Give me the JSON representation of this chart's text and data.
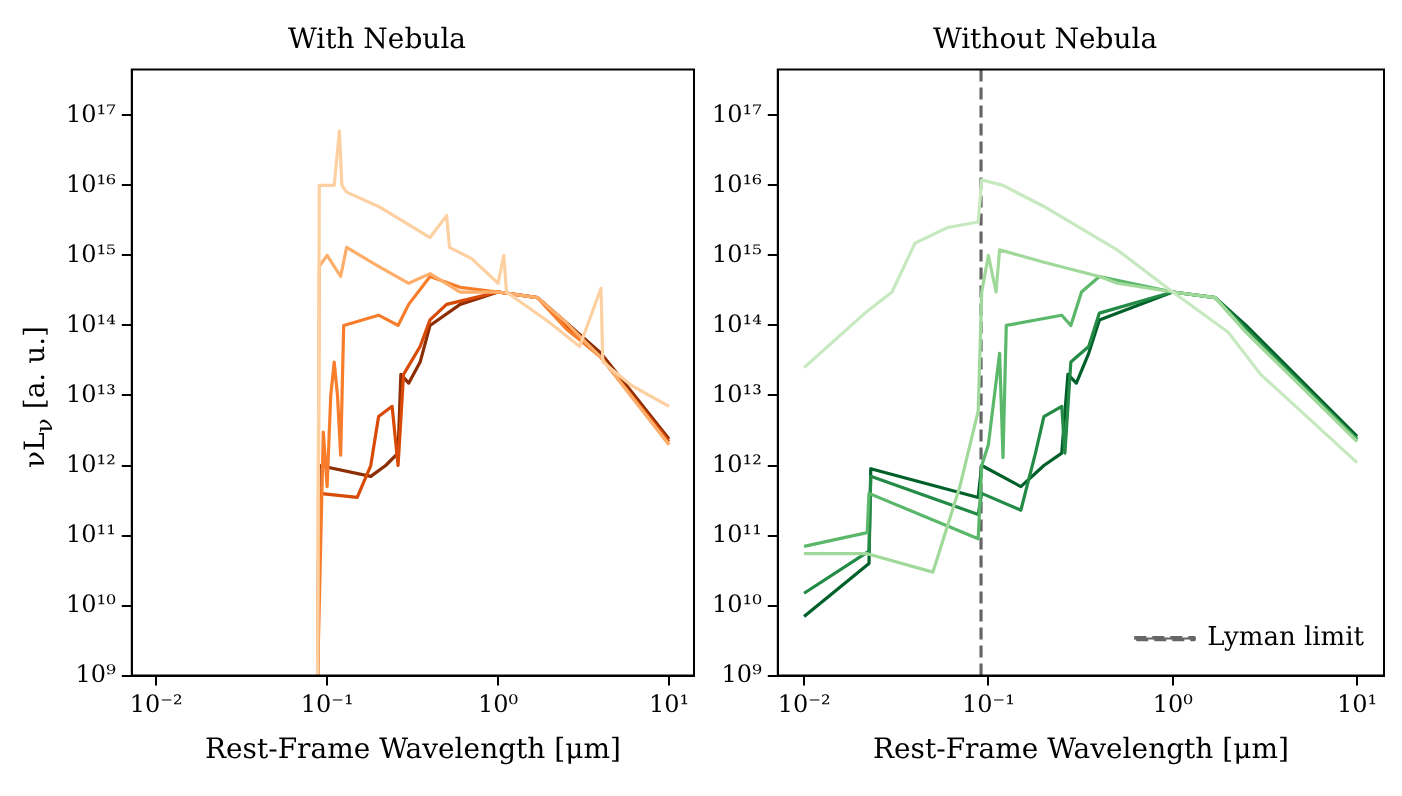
{
  "chart_data": [
    {
      "type": "line",
      "title": "With Nebula",
      "xlabel": "Rest-Frame Wavelength [μm]",
      "ylabel": "νL$_{ν}$ [a. u.]",
      "log": "xy",
      "grid": false,
      "legend": false,
      "xlim": [
        0.0072,
        14
      ],
      "ylim": [
        1000000000.0,
        4.5e+17
      ],
      "xticks": [
        {
          "value": 0.01,
          "label": "10⁻²"
        },
        {
          "value": 0.1,
          "label": "10⁻¹"
        },
        {
          "value": 1,
          "label": "10⁰"
        },
        {
          "value": 10,
          "label": "10¹"
        }
      ],
      "yticks": [
        {
          "value": 1000000000.0,
          "label": "10⁹"
        },
        {
          "value": 10000000000.0,
          "label": "10¹⁰"
        },
        {
          "value": 100000000000.0,
          "label": "10¹¹"
        },
        {
          "value": 1000000000000.0,
          "label": "10¹²"
        },
        {
          "value": 10000000000000.0,
          "label": "10¹³"
        },
        {
          "value": 100000000000000.0,
          "label": "10¹⁴"
        },
        {
          "value": 1000000000000000.0,
          "label": "10¹⁵"
        },
        {
          "value": 1e+16,
          "label": "10¹⁶"
        },
        {
          "value": 1e+17,
          "label": "10¹⁷"
        }
      ],
      "series": [
        {
          "color": "#fdd0a2",
          "x": [
            0.088,
            0.09,
            0.11,
            0.118,
            0.122,
            0.13,
            0.2,
            0.4,
            0.5,
            0.52,
            0.7,
            1.0,
            1.08,
            1.12,
            2,
            3,
            4,
            4.1,
            6,
            10
          ],
          "values": [
            1000000000.0,
            1e+16,
            1e+16,
            6e+16,
            1e+16,
            8000000000000000.0,
            5000000000000000.0,
            1800000000000000.0,
            3700000000000000.0,
            1300000000000000.0,
            900000000000000.0,
            400000000000000.0,
            1000000000000000.0,
            300000000000000.0,
            110000000000000.0,
            50000000000000.0,
            340000000000000.0,
            30000000000000.0,
            14000000000000.0,
            7000000000000.0
          ]
        },
        {
          "color": "#fdae6b",
          "x": [
            0.088,
            0.09,
            0.1,
            0.12,
            0.13,
            0.2,
            0.3,
            0.4,
            0.6,
            1,
            1.7,
            2.5,
            4,
            10
          ],
          "values": [
            1000000000.0,
            700000000000000.0,
            1000000000000000.0,
            500000000000000.0,
            1300000000000000.0,
            700000000000000.0,
            400000000000000.0,
            550000000000000.0,
            300000000000000.0,
            300000000000000.0,
            250000000000000.0,
            110000000000000.0,
            35000000000000.0,
            2000000000000.0
          ]
        },
        {
          "color": "#f87d2b",
          "x": [
            0.088,
            0.095,
            0.1,
            0.105,
            0.11,
            0.115,
            0.12,
            0.125,
            0.2,
            0.26,
            0.3,
            0.4,
            0.6,
            1,
            1.7,
            2.5,
            4,
            10
          ],
          "values": [
            1000000000.0,
            3000000000000.0,
            500000000000.0,
            10000000000000.0,
            30000000000000.0,
            10000000000000.0,
            1400000000000.0,
            100000000000000.0,
            140000000000000.0,
            100000000000000.0,
            200000000000000.0,
            500000000000000.0,
            350000000000000.0,
            300000000000000.0,
            250000000000000.0,
            90000000000000.0,
            35000000000000.0,
            2000000000000.0
          ]
        },
        {
          "color": "#d84a05",
          "x": [
            0.088,
            0.09,
            0.15,
            0.18,
            0.2,
            0.24,
            0.26,
            0.28,
            0.35,
            0.4,
            0.5,
            1,
            1.7,
            2.5,
            4,
            10
          ],
          "values": [
            1000000000.0,
            400000000000.0,
            350000000000.0,
            1000000000000.0,
            5000000000000.0,
            7000000000000.0,
            1000000000000.0,
            20000000000000.0,
            50000000000000.0,
            120000000000000.0,
            200000000000000.0,
            300000000000000.0,
            250000000000000.0,
            100000000000000.0,
            35000000000000.0,
            2200000000000.0
          ]
        },
        {
          "color": "#8c2d04",
          "x": [
            0.088,
            0.09,
            0.18,
            0.22,
            0.26,
            0.27,
            0.3,
            0.35,
            0.4,
            0.6,
            1,
            1.7,
            2.5,
            4,
            10
          ],
          "values": [
            1000000000.0,
            1000000000000.0,
            700000000000.0,
            1000000000000.0,
            1500000000000.0,
            20000000000000.0,
            15000000000000.0,
            30000000000000.0,
            100000000000000.0,
            200000000000000.0,
            300000000000000.0,
            250000000000000.0,
            110000000000000.0,
            40000000000000.0,
            2400000000000.0
          ]
        }
      ]
    },
    {
      "type": "line",
      "title": "Without Nebula",
      "xlabel": "Rest-Frame Wavelength [μm]",
      "log": "xy",
      "grid": false,
      "legend": "bottom right",
      "xlim": [
        0.0072,
        14
      ],
      "ylim": [
        1000000000.0,
        4.5e+17
      ],
      "xticks": [
        {
          "value": 0.01,
          "label": "10⁻²"
        },
        {
          "value": 0.1,
          "label": "10⁻¹"
        },
        {
          "value": 1,
          "label": "10⁰"
        },
        {
          "value": 10,
          "label": "10¹"
        }
      ],
      "yticks": [
        {
          "value": 1000000000.0,
          "label": "10⁹"
        },
        {
          "value": 10000000000.0,
          "label": "10¹⁰"
        },
        {
          "value": 100000000000.0,
          "label": "10¹¹"
        },
        {
          "value": 1000000000000.0,
          "label": "10¹²"
        },
        {
          "value": 10000000000000.0,
          "label": "10¹³"
        },
        {
          "value": 100000000000000.0,
          "label": "10¹⁴"
        },
        {
          "value": 1000000000000000.0,
          "label": "10¹⁵"
        },
        {
          "value": 1e+16,
          "label": "10¹⁶"
        },
        {
          "value": 1e+17,
          "label": "10¹⁷"
        }
      ],
      "series": [
        {
          "color": "#c7e9c0",
          "x": [
            0.01,
            0.022,
            0.03,
            0.04,
            0.06,
            0.088,
            0.092,
            0.12,
            0.2,
            0.5,
            1,
            2,
            3,
            10
          ],
          "values": [
            25000000000000.0,
            160000000000000.0,
            300000000000000.0,
            1500000000000000.0,
            2500000000000000.0,
            3000000000000000.0,
            1.2e+16,
            1e+16,
            5000000000000000.0,
            1200000000000000.0,
            300000000000000.0,
            80000000000000.0,
            20000000000000.0,
            1100000000000.0
          ]
        },
        {
          "color": "#a1d99b",
          "x": [
            0.01,
            0.022,
            0.05,
            0.07,
            0.088,
            0.092,
            0.1,
            0.11,
            0.115,
            0.2,
            0.4,
            0.5,
            1,
            1.7,
            2.5,
            10
          ],
          "values": [
            55000000000.0,
            55000000000.0,
            30000000000.0,
            500000000000.0,
            6000000000000.0,
            300000000000000.0,
            1000000000000000.0,
            300000000000000.0,
            1200000000000000.0,
            800000000000000.0,
            500000000000000.0,
            400000000000000.0,
            300000000000000.0,
            250000000000000.0,
            80000000000000.0,
            2200000000000.0
          ]
        },
        {
          "color": "#5bb86b",
          "x": [
            0.01,
            0.022,
            0.0225,
            0.088,
            0.092,
            0.1,
            0.115,
            0.12,
            0.125,
            0.25,
            0.28,
            0.32,
            0.4,
            1,
            1.7,
            2.5,
            10
          ],
          "values": [
            70000000000.0,
            110000000000.0,
            400000000000.0,
            90000000000.0,
            1000000000000.0,
            2000000000000.0,
            40000000000000.0,
            1300000000000.0,
            100000000000000.0,
            140000000000000.0,
            100000000000000.0,
            300000000000000.0,
            500000000000000.0,
            300000000000000.0,
            250000000000000.0,
            80000000000000.0,
            2300000000000.0
          ]
        },
        {
          "color": "#238b45",
          "x": [
            0.01,
            0.0225,
            0.023,
            0.088,
            0.092,
            0.15,
            0.18,
            0.2,
            0.25,
            0.26,
            0.28,
            0.35,
            0.4,
            1,
            1.7,
            2.5,
            10
          ],
          "values": [
            15000000000.0,
            60000000000.0,
            700000000000.0,
            200000000000.0,
            400000000000.0,
            230000000000.0,
            1500000000000.0,
            5000000000000.0,
            7000000000000.0,
            1500000000000.0,
            30000000000000.0,
            50000000000000.0,
            150000000000000.0,
            300000000000000.0,
            250000000000000.0,
            90000000000000.0,
            2400000000000.0
          ]
        },
        {
          "color": "#00602a",
          "x": [
            0.01,
            0.0225,
            0.023,
            0.088,
            0.092,
            0.15,
            0.2,
            0.25,
            0.27,
            0.3,
            0.35,
            0.4,
            1,
            1.7,
            2.5,
            10
          ],
          "values": [
            7000000000.0,
            40000000000.0,
            900000000000.0,
            350000000000.0,
            1000000000000.0,
            500000000000.0,
            1000000000000.0,
            1500000000000.0,
            20000000000000.0,
            15000000000000.0,
            40000000000000.0,
            120000000000000.0,
            300000000000000.0,
            250000000000000.0,
            100000000000000.0,
            2600000000000.0
          ]
        },
        {
          "name": "Lyman limit",
          "type": "line",
          "line_style": "dashed",
          "color": "#666666",
          "x": [
            0.0912,
            0.0912
          ],
          "values": [
            1000000000.0,
            4.5e+17
          ]
        }
      ]
    }
  ]
}
